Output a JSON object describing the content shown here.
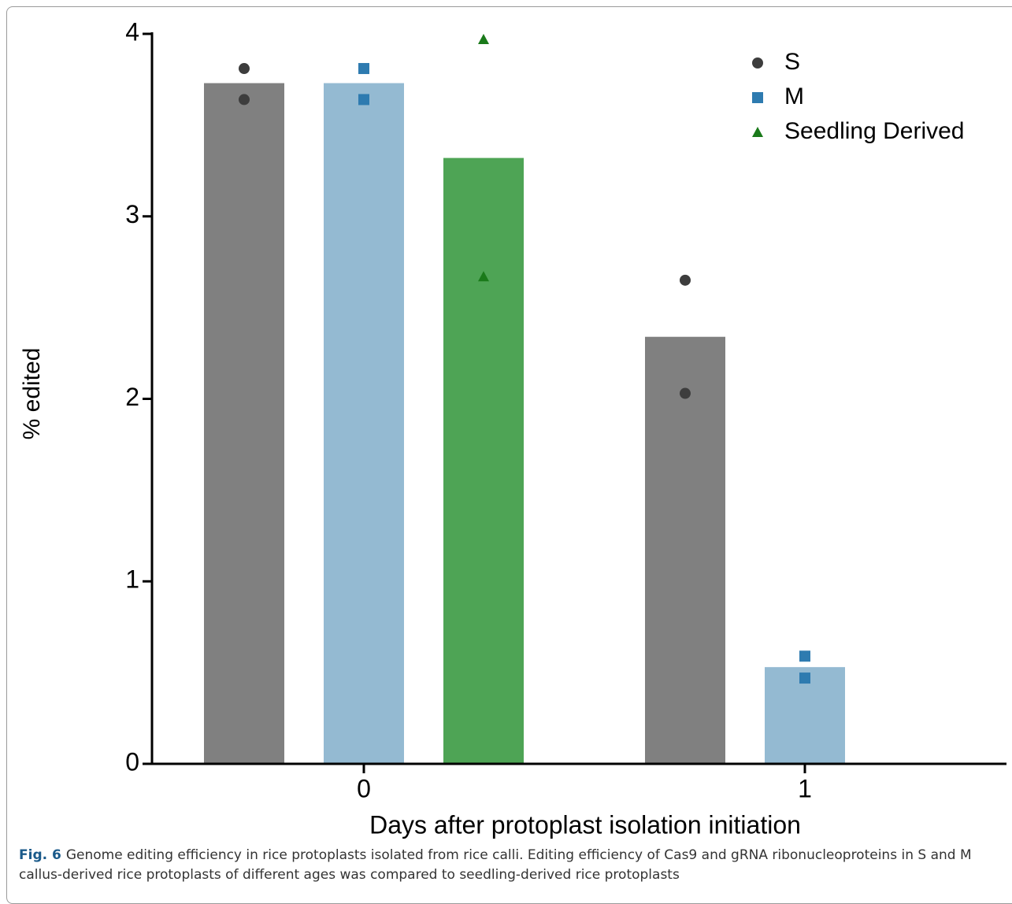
{
  "chart_data": {
    "type": "bar",
    "x_label": "Days after protoplast isolation initiation",
    "y_label": "% edited",
    "categories": [
      "0",
      "1"
    ],
    "ylim": [
      0,
      4
    ],
    "yticks": [
      0,
      1,
      2,
      3,
      4
    ],
    "legend": "top-right",
    "series": [
      {
        "name": "S",
        "color": "#808080",
        "marker_color": "#3d3d3d",
        "marker": "circle",
        "values": [
          3.73,
          2.34
        ],
        "points": [
          [
            3.81,
            3.64
          ],
          [
            2.65,
            2.03
          ]
        ]
      },
      {
        "name": "M",
        "color": "#94bad2",
        "marker_color": "#2e7bb0",
        "marker": "square",
        "values": [
          3.73,
          0.53
        ],
        "points": [
          [
            3.81,
            3.64
          ],
          [
            0.59,
            0.47
          ]
        ]
      },
      {
        "name": "Seedling Derived",
        "color": "#4ea455",
        "marker_color": "#1a7a1a",
        "marker": "triangle",
        "values": [
          3.32,
          null
        ],
        "points": [
          [
            3.97,
            2.67
          ],
          null
        ]
      }
    ]
  },
  "caption": {
    "label": "Fig. 6",
    "text": "Genome editing efficiency in rice protoplasts isolated from rice calli. Editing efficiency of Cas9 and gRNA ribonucleoproteins in S and M callus-derived rice protoplasts of different ages was compared to seedling-derived rice protoplasts"
  }
}
